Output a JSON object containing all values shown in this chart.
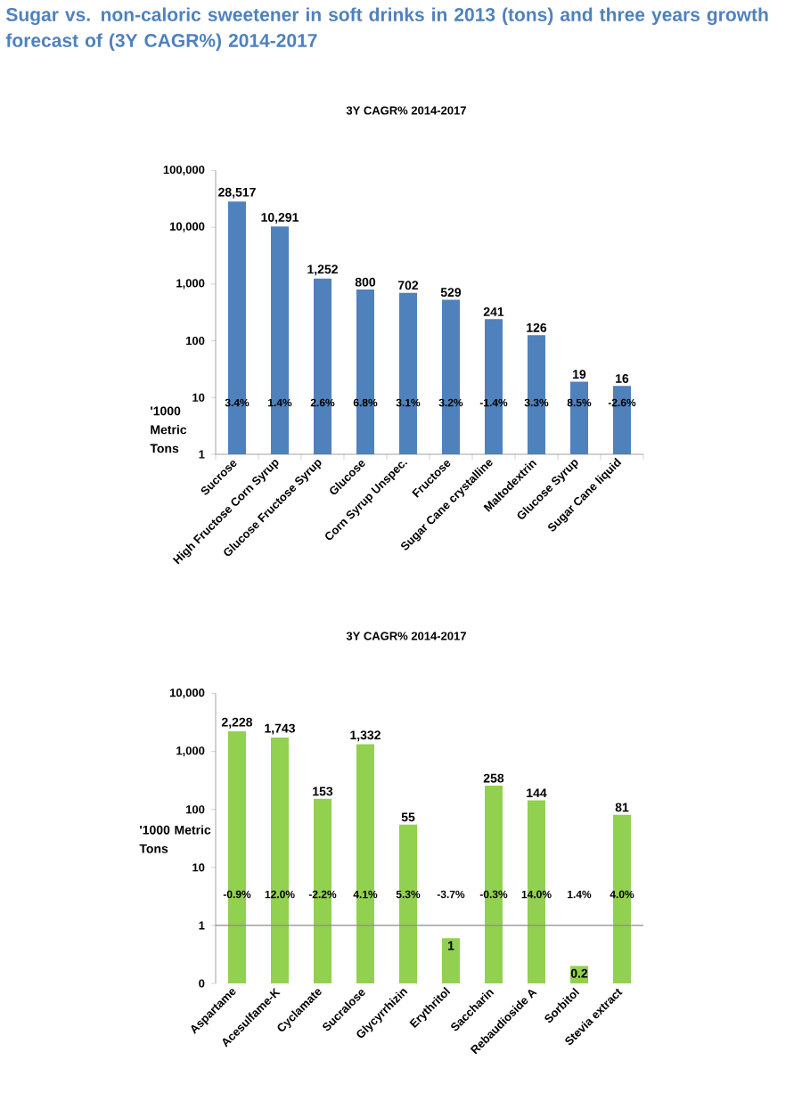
{
  "chart_data": [
    {
      "type": "bar",
      "title": "Sugar vs. non-caloric sweetener in soft drinks in 2013 (tons) and three years growth forecast of (3Y CAGR%) 2014-2017",
      "subtitle": "3Y CAGR% 2014-2017",
      "ylabel": "'1000 Metric Tons",
      "categories": [
        "Sucrose",
        "High Fructose Corn Syrup",
        "Glucose Fructose Syrup",
        "Glucose",
        "Corn Syrup Unspec.",
        "Fructose",
        "Sugar Cane crystalline",
        "Maltodextrin",
        "Glucose Syrup",
        "Sugar Cane liquid"
      ],
      "values": [
        28517,
        10291,
        1252,
        800,
        702,
        529,
        241,
        126,
        19,
        16
      ],
      "value_labels": [
        "28,517",
        "10,291",
        "1,252",
        "800",
        "702",
        "529",
        "241",
        "126",
        "19",
        "16"
      ],
      "color": "#4f81bd",
      "log": "y",
      "ylim": [
        1,
        100000
      ],
      "yticks": [
        1,
        10,
        100,
        {
          "value": 1000,
          "label": "1,000"
        },
        {
          "value": 10000,
          "label": "10,000"
        },
        {
          "value": 100000,
          "label": "100,000"
        }
      ],
      "annotations": [
        "3.4%",
        "1.4%",
        "2.6%",
        "6.8%",
        "3.1%",
        "3.2%",
        "-1.4%",
        "3.3%",
        "8.5%",
        "-2.6%"
      ]
    },
    {
      "type": "bar",
      "subtitle": "3Y CAGR% 2014-2017",
      "ylabel": "'1000 Metric Tons",
      "categories": [
        "Aspartame",
        "Acesulfame-K",
        "Cyclamate",
        "Sucralose",
        "Glycyrrhizin",
        "Erythritol",
        "Saccharin",
        "Rebaudioside A",
        "Sorbitol",
        "Stevia extract"
      ],
      "values": [
        2228,
        1743,
        153,
        1332,
        55,
        0.6,
        258,
        144,
        0.2,
        81
      ],
      "value_labels": [
        "2,228",
        "1,743",
        "153",
        "1,332",
        "55",
        "1",
        "258",
        "144",
        "0.2",
        "81"
      ],
      "color": "#92d050",
      "log": "y",
      "ylim": [
        0.1,
        10000
      ],
      "yticks": [
        {
          "value": 0.1,
          "label": "0"
        },
        1,
        10,
        100,
        {
          "value": 1000,
          "label": "1,000"
        },
        {
          "value": 10000,
          "label": "10,000"
        }
      ],
      "ref_lines": [
        {
          "axis": "y",
          "value": 1,
          "color": "#8c8c8c"
        }
      ],
      "annotations": [
        "-0.9%",
        "12.0%",
        "-2.2%",
        "4.1%",
        "5.3%",
        "-3.7%",
        "-0.3%",
        "14.0%",
        "1.4%",
        "4.0%"
      ]
    }
  ]
}
